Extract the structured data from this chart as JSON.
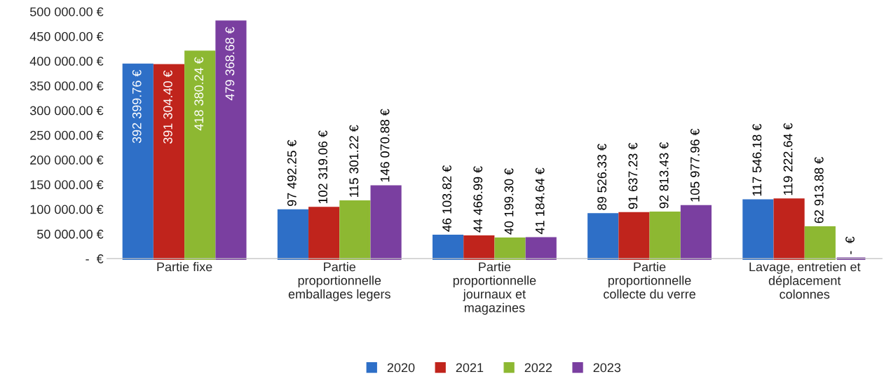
{
  "chart_data": {
    "type": "bar",
    "categories": [
      "Partie fixe",
      "Partie\nproportionnelle\nemballages legers",
      "Partie\nproportionnelle\njournaux et\nmagazines",
      "Partie\nproportionnelle\ncollecte du verre",
      "Lavage, entretien et\ndéplacement\ncolonnes"
    ],
    "series": [
      {
        "name": "2020",
        "color": "#2e6fc7",
        "values": [
          392399.76,
          97492.25,
          46103.82,
          89526.33,
          117546.18
        ],
        "value_labels": [
          "392 399.76 €",
          "97 492.25 €",
          "46 103.82 €",
          "89 526.33 €",
          "117 546.18 €"
        ]
      },
      {
        "name": "2021",
        "color": "#c0241c",
        "values": [
          391304.4,
          102319.06,
          44466.99,
          91637.23,
          119222.64
        ],
        "value_labels": [
          "391 304.40 €",
          "102 319.06 €",
          "44 466.99 €",
          "91 637.23 €",
          "119 222.64 €"
        ]
      },
      {
        "name": "2022",
        "color": "#8db832",
        "values": [
          418380.24,
          115301.22,
          40199.3,
          92813.43,
          62913.88
        ],
        "value_labels": [
          "418 380.24 €",
          "115 301.22 €",
          "40 199.30 €",
          "92 813.43 €",
          "62 913.88 €"
        ]
      },
      {
        "name": "2023",
        "color": "#7a3fa0",
        "values": [
          479368.68,
          146070.88,
          41184.64,
          105977.96,
          0
        ],
        "value_labels": [
          "479 368.68 €",
          "146 070.88 €",
          "41 184.64 €",
          "105 977.96 €",
          "-  €"
        ]
      }
    ],
    "ylim": [
      0,
      500000
    ],
    "yticks": [
      {
        "value": 0,
        "label": "-  €"
      },
      {
        "value": 50000,
        "label": "50 000.00 €"
      },
      {
        "value": 100000,
        "label": "100 000.00 €"
      },
      {
        "value": 150000,
        "label": "150 000.00 €"
      },
      {
        "value": 200000,
        "label": "200 000.00 €"
      },
      {
        "value": 250000,
        "label": "250 000.00 €"
      },
      {
        "value": 300000,
        "label": "300 000.00 €"
      },
      {
        "value": 350000,
        "label": "350 000.00 €"
      },
      {
        "value": 400000,
        "label": "400 000.00 €"
      },
      {
        "value": 450000,
        "label": "450 000.00 €"
      },
      {
        "value": 500000,
        "label": "500 000.00 €"
      }
    ],
    "grid": false,
    "legend": "bottom",
    "marker": "square"
  }
}
